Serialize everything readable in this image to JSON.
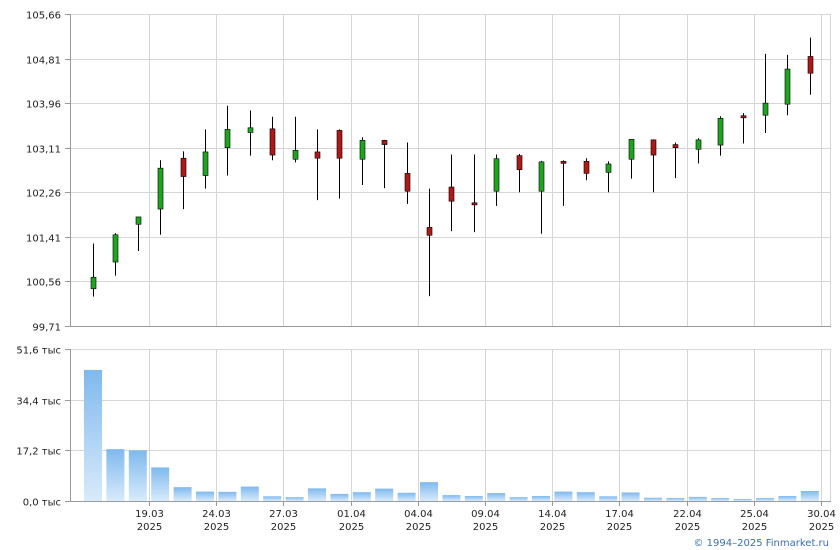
{
  "chart_data": [
    {
      "type": "candlestick",
      "panel": "price",
      "ylim": [
        99.71,
        105.66
      ],
      "y_ticks": [
        "105,66",
        "104,81",
        "103,96",
        "103,11",
        "102,26",
        "101,41",
        "100,56",
        "99,71"
      ],
      "y_tick_values": [
        105.66,
        104.81,
        103.96,
        103.11,
        102.26,
        101.41,
        100.56,
        99.71
      ],
      "grid": true,
      "candles": [
        {
          "o": 100.42,
          "h": 101.28,
          "l": 100.27,
          "c": 100.64
        },
        {
          "o": 100.93,
          "h": 101.48,
          "l": 100.67,
          "c": 101.45
        },
        {
          "o": 101.65,
          "h": 101.78,
          "l": 101.14,
          "c": 101.79
        },
        {
          "o": 101.94,
          "h": 102.87,
          "l": 101.45,
          "c": 102.72
        },
        {
          "o": 102.91,
          "h": 103.04,
          "l": 101.94,
          "c": 102.56
        },
        {
          "o": 102.58,
          "h": 103.46,
          "l": 102.33,
          "c": 103.03
        },
        {
          "o": 103.11,
          "h": 103.91,
          "l": 102.58,
          "c": 103.46
        },
        {
          "o": 103.4,
          "h": 103.82,
          "l": 102.96,
          "c": 103.49
        },
        {
          "o": 103.47,
          "h": 103.7,
          "l": 102.87,
          "c": 102.97
        },
        {
          "o": 102.89,
          "h": 103.7,
          "l": 102.83,
          "c": 103.06
        },
        {
          "o": 103.03,
          "h": 103.46,
          "l": 102.11,
          "c": 102.91
        },
        {
          "o": 103.44,
          "h": 103.46,
          "l": 102.14,
          "c": 102.91
        },
        {
          "o": 102.89,
          "h": 103.31,
          "l": 102.4,
          "c": 103.25
        },
        {
          "o": 103.25,
          "h": 103.26,
          "l": 102.34,
          "c": 103.17
        },
        {
          "o": 102.62,
          "h": 103.21,
          "l": 102.04,
          "c": 102.28
        },
        {
          "o": 101.59,
          "h": 102.33,
          "l": 100.28,
          "c": 101.44
        },
        {
          "o": 102.36,
          "h": 102.98,
          "l": 101.52,
          "c": 102.09
        },
        {
          "o": 102.06,
          "h": 102.98,
          "l": 101.5,
          "c": 102.02
        },
        {
          "o": 102.28,
          "h": 102.98,
          "l": 102.0,
          "c": 102.9
        },
        {
          "o": 102.96,
          "h": 102.99,
          "l": 102.26,
          "c": 102.69
        },
        {
          "o": 102.28,
          "h": 102.86,
          "l": 101.47,
          "c": 102.84
        },
        {
          "o": 102.85,
          "h": 102.87,
          "l": 102.0,
          "c": 102.84
        },
        {
          "o": 102.85,
          "h": 102.91,
          "l": 102.49,
          "c": 102.62
        },
        {
          "o": 102.64,
          "h": 102.85,
          "l": 102.26,
          "c": 102.8
        },
        {
          "o": 102.89,
          "h": 103.27,
          "l": 102.52,
          "c": 103.27
        },
        {
          "o": 103.26,
          "h": 103.27,
          "l": 102.26,
          "c": 102.97
        },
        {
          "o": 103.17,
          "h": 103.21,
          "l": 102.53,
          "c": 103.11
        },
        {
          "o": 103.08,
          "h": 103.29,
          "l": 102.81,
          "c": 103.26
        },
        {
          "o": 103.16,
          "h": 103.71,
          "l": 102.96,
          "c": 103.67
        },
        {
          "o": 103.72,
          "h": 103.77,
          "l": 103.19,
          "c": 103.68
        },
        {
          "o": 103.73,
          "h": 104.9,
          "l": 103.39,
          "c": 103.96
        },
        {
          "o": 103.94,
          "h": 104.88,
          "l": 103.73,
          "c": 104.61
        },
        {
          "o": 104.85,
          "h": 105.21,
          "l": 104.12,
          "c": 104.53
        }
      ],
      "colors": {
        "up": "#1ea51e",
        "down": "#b01818",
        "wick": "#000000",
        "grid": "#d6d6d6",
        "axis": "#9a9a9a"
      }
    },
    {
      "type": "bar",
      "panel": "volume",
      "ylim": [
        0,
        51.6
      ],
      "y_ticks": [
        "51,6 тыс",
        "34,4 тыс",
        "17,2 тыс",
        "0,0 тыс"
      ],
      "y_tick_values": [
        51.6,
        34.4,
        17.2,
        0
      ],
      "values": [
        44.5,
        17.6,
        17.2,
        11.4,
        4.7,
        3.2,
        3.1,
        4.9,
        1.6,
        1.3,
        4.3,
        2.4,
        3.0,
        4.2,
        2.8,
        6.4,
        2.0,
        1.7,
        2.7,
        1.3,
        1.7,
        3.2,
        3.0,
        1.6,
        2.9,
        1.1,
        1.0,
        1.4,
        1.0,
        0.7,
        1.0,
        1.7,
        3.4
      ],
      "colors": {
        "bar_top": "#7fb9ee",
        "bar_bottom": "#d8ebfb",
        "grid": "#d6d6d6"
      }
    }
  ],
  "x_axis": {
    "ticks": [
      {
        "after_index": 2,
        "line1": "19.03",
        "line2": "2025"
      },
      {
        "after_index": 5,
        "line1": "24.03",
        "line2": "2025"
      },
      {
        "after_index": 8,
        "line1": "27.03",
        "line2": "2025"
      },
      {
        "after_index": 11,
        "line1": "01.04",
        "line2": "2025"
      },
      {
        "after_index": 14,
        "line1": "04.04",
        "line2": "2025"
      },
      {
        "after_index": 17,
        "line1": "09.04",
        "line2": "2025"
      },
      {
        "after_index": 20,
        "line1": "14.04",
        "line2": "2025"
      },
      {
        "after_index": 23,
        "line1": "17.04",
        "line2": "2025"
      },
      {
        "after_index": 26,
        "line1": "22.04",
        "line2": "2025"
      },
      {
        "after_index": 29,
        "line1": "25.04",
        "line2": "2025"
      },
      {
        "after_index": 32,
        "line1": "30.04",
        "line2": "2025"
      }
    ]
  },
  "footer": {
    "copyright": "© 1994–2025 Finmarket.ru"
  }
}
